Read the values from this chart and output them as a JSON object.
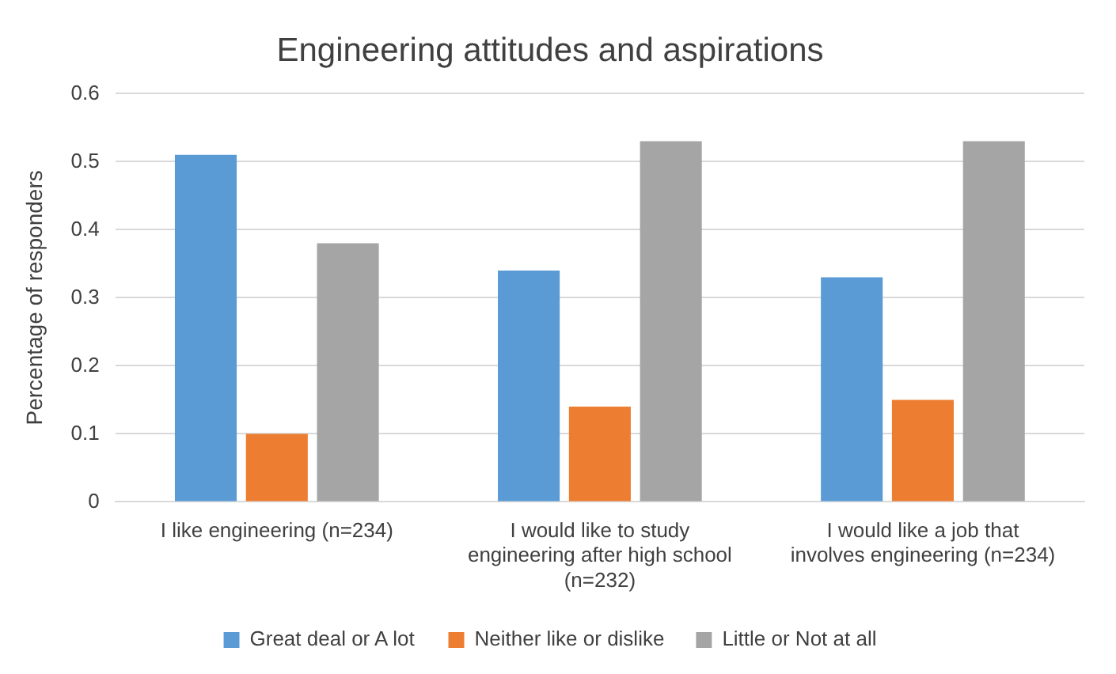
{
  "chart_data": {
    "type": "bar",
    "title": "Engineering attitudes and aspirations",
    "ylabel": "Percentage of responders",
    "categories": [
      "I like engineering (n=234)",
      "I would like to study engineering after high school (n=232)",
      "I would like a job that involves engineering (n=234)"
    ],
    "series": [
      {
        "name": "Great deal or A lot",
        "color": "#5b9bd5",
        "values": [
          0.51,
          0.34,
          0.33
        ]
      },
      {
        "name": "Neither like or dislike",
        "color": "#ed7d31",
        "values": [
          0.1,
          0.14,
          0.15
        ]
      },
      {
        "name": "Little or Not at all",
        "color": "#a5a5a5",
        "values": [
          0.38,
          0.53,
          0.53
        ]
      }
    ],
    "ylim": [
      0,
      0.6
    ],
    "yticks": [
      0,
      0.1,
      0.2,
      0.3,
      0.4,
      0.5,
      0.6
    ],
    "grid": "y",
    "legend": "bottom"
  }
}
